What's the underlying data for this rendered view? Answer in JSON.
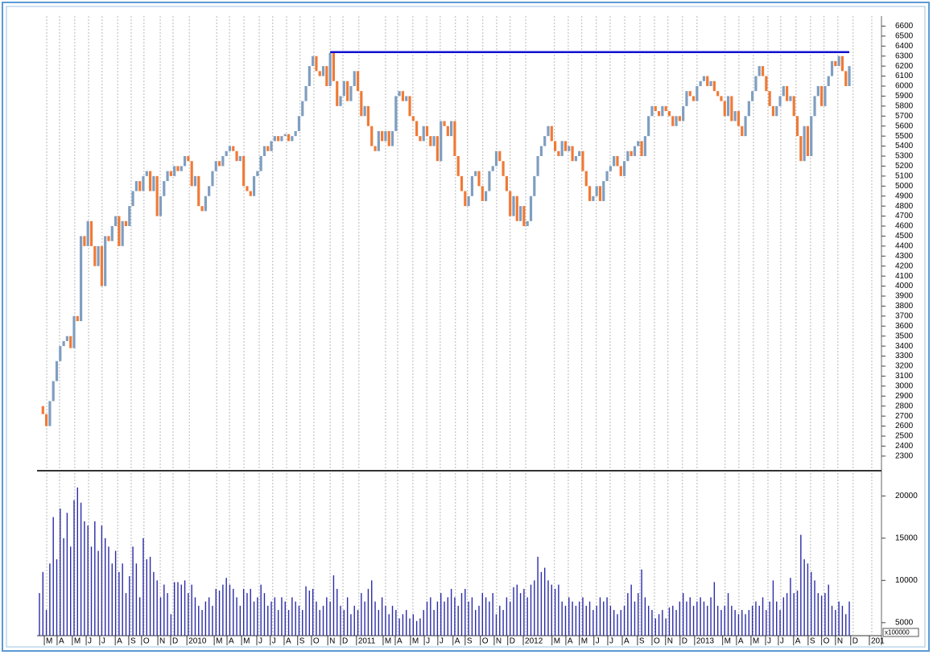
{
  "chart_data": [
    {
      "type": "candlestick",
      "up_color": "#7f9ec0",
      "down_color": "#f07a36",
      "xlim": [
        -0.7,
        243.3
      ],
      "ylim": [
        2170,
        6700
      ],
      "yticks": [
        2300,
        2400,
        2500,
        2600,
        2700,
        2800,
        2900,
        3000,
        3100,
        3200,
        3300,
        3400,
        3500,
        3600,
        3700,
        3800,
        3900,
        4000,
        4100,
        4200,
        4300,
        4400,
        4500,
        4600,
        4700,
        4800,
        4900,
        5000,
        5100,
        5200,
        5300,
        5400,
        5500,
        5600,
        5700,
        5800,
        5900,
        6000,
        6100,
        6200,
        6300,
        6400,
        6500,
        6600
      ],
      "hline": {
        "value": 6340,
        "from": 84,
        "to": 234,
        "color": "#1010d0"
      },
      "values": [
        2800,
        2720,
        2600,
        2850,
        3050,
        3250,
        3400,
        3450,
        3500,
        3380,
        3700,
        3650,
        4500,
        4400,
        4650,
        4400,
        4200,
        4400,
        4000,
        4500,
        4450,
        4600,
        4700,
        4400,
        4650,
        4600,
        4800,
        4950,
        5050,
        4950,
        5100,
        5150,
        4950,
        5100,
        4700,
        4900,
        5050,
        5150,
        5100,
        5200,
        5150,
        5200,
        5300,
        5250,
        5000,
        5100,
        4800,
        4750,
        4900,
        5000,
        5150,
        5250,
        5200,
        5300,
        5350,
        5400,
        5350,
        5250,
        5300,
        5000,
        4950,
        4900,
        5100,
        5150,
        5300,
        5400,
        5350,
        5450,
        5500,
        5450,
        5500,
        5520,
        5450,
        5500,
        5550,
        5700,
        5850,
        6000,
        6200,
        6300,
        6150,
        6100,
        6200,
        6000,
        6330,
        6050,
        5800,
        5900,
        6050,
        5850,
        6000,
        6150,
        5950,
        5700,
        5800,
        5600,
        5400,
        5350,
        5550,
        5450,
        5550,
        5400,
        5550,
        5900,
        5950,
        5850,
        5900,
        5700,
        5650,
        5500,
        5450,
        5600,
        5500,
        5400,
        5500,
        5250,
        5650,
        5600,
        5500,
        5650,
        5300,
        5100,
        4950,
        4800,
        4900,
        5100,
        5150,
        5000,
        4850,
        4950,
        5150,
        5200,
        5350,
        5250,
        5100,
        4950,
        4700,
        4900,
        4650,
        4800,
        4600,
        4650,
        4900,
        5100,
        5300,
        5400,
        5500,
        5600,
        5450,
        5350,
        5300,
        5450,
        5350,
        5400,
        5250,
        5300,
        5350,
        5150,
        5000,
        4850,
        4900,
        5000,
        4850,
        5050,
        5150,
        5200,
        5300,
        5200,
        5100,
        5250,
        5350,
        5300,
        5400,
        5450,
        5300,
        5500,
        5700,
        5800,
        5750,
        5700,
        5800,
        5750,
        5700,
        5600,
        5700,
        5650,
        5800,
        5950,
        5900,
        5850,
        6000,
        6050,
        6100,
        6000,
        6050,
        5950,
        5900,
        5850,
        5700,
        5900,
        5650,
        5750,
        5600,
        5500,
        5700,
        5850,
        5950,
        6100,
        6200,
        6100,
        5950,
        5800,
        5700,
        5800,
        5900,
        6000,
        5850,
        5900,
        5700,
        5500,
        5250,
        5600,
        5300,
        5700,
        5900,
        6000,
        5800,
        6000,
        6100,
        6250,
        6200,
        6300,
        6150,
        6000,
        6200
      ]
    },
    {
      "type": "bar",
      "color": "#2b2ba8",
      "xlim": [
        -0.7,
        243.3
      ],
      "ylim": [
        3460,
        22700
      ],
      "yticks": [
        5000,
        10000,
        15000,
        20000
      ],
      "unit_label": "x100000",
      "xticks": [
        {
          "value": 2.1,
          "label": "M"
        },
        {
          "value": 5.8,
          "label": "A"
        },
        {
          "value": 10.2,
          "label": "M"
        },
        {
          "value": 14.2,
          "label": "J"
        },
        {
          "value": 18.1,
          "label": "J"
        },
        {
          "value": 22.6,
          "label": "A"
        },
        {
          "value": 26.5,
          "label": "S"
        },
        {
          "value": 30.2,
          "label": "O"
        },
        {
          "value": 34.9,
          "label": "N"
        },
        {
          "value": 38.6,
          "label": "D"
        },
        {
          "value": 43.3,
          "label": "2010"
        },
        {
          "value": 51.2,
          "label": "M"
        },
        {
          "value": 54.9,
          "label": "A"
        },
        {
          "value": 59.1,
          "label": "M"
        },
        {
          "value": 63.5,
          "label": "J"
        },
        {
          "value": 67.4,
          "label": "J"
        },
        {
          "value": 71.4,
          "label": "A"
        },
        {
          "value": 75.3,
          "label": "S"
        },
        {
          "value": 79.3,
          "label": "O"
        },
        {
          "value": 84,
          "label": "N"
        },
        {
          "value": 87.7,
          "label": "D"
        },
        {
          "value": 92.3,
          "label": "2011"
        },
        {
          "value": 100,
          "label": "M"
        },
        {
          "value": 103.5,
          "label": "A"
        },
        {
          "value": 107.9,
          "label": "M"
        },
        {
          "value": 111.9,
          "label": "J"
        },
        {
          "value": 115.8,
          "label": "J"
        },
        {
          "value": 120.2,
          "label": "A"
        },
        {
          "value": 123.7,
          "label": "S"
        },
        {
          "value": 128.1,
          "label": "O"
        },
        {
          "value": 132.1,
          "label": "N"
        },
        {
          "value": 136,
          "label": "D"
        },
        {
          "value": 140.5,
          "label": "2012"
        },
        {
          "value": 148.8,
          "label": "M"
        },
        {
          "value": 152.8,
          "label": "A"
        },
        {
          "value": 156.7,
          "label": "M"
        },
        {
          "value": 160.9,
          "label": "J"
        },
        {
          "value": 164.9,
          "label": "J"
        },
        {
          "value": 169.1,
          "label": "A"
        },
        {
          "value": 173.5,
          "label": "S"
        },
        {
          "value": 177.7,
          "label": "O"
        },
        {
          "value": 181.6,
          "label": "N"
        },
        {
          "value": 185.8,
          "label": "D"
        },
        {
          "value": 190,
          "label": "2013"
        },
        {
          "value": 198.1,
          "label": "M"
        },
        {
          "value": 202.1,
          "label": "A"
        },
        {
          "value": 206.3,
          "label": "M"
        },
        {
          "value": 210.5,
          "label": "J"
        },
        {
          "value": 214.2,
          "label": "J"
        },
        {
          "value": 218.6,
          "label": "A"
        },
        {
          "value": 222.8,
          "label": "S"
        },
        {
          "value": 226.7,
          "label": "O"
        },
        {
          "value": 230.7,
          "label": "N"
        },
        {
          "value": 235.1,
          "label": "D"
        },
        {
          "value": 240.5,
          "label": "201"
        }
      ],
      "values": [
        8500,
        11000,
        6500,
        12000,
        17500,
        12500,
        18500,
        15000,
        18000,
        14000,
        19500,
        21000,
        19200,
        17000,
        16500,
        14000,
        17000,
        13500,
        16500,
        15000,
        14000,
        12000,
        13500,
        11000,
        12000,
        8500,
        10500,
        14000,
        12000,
        8000,
        15000,
        12500,
        12800,
        11000,
        10000,
        8000,
        9500,
        8500,
        6000,
        9800,
        9800,
        9500,
        10000,
        8500,
        9500,
        8000,
        7000,
        6500,
        7500,
        8000,
        7000,
        9000,
        8800,
        9500,
        10300,
        9500,
        9000,
        8000,
        7000,
        9000,
        8500,
        9000,
        7500,
        8000,
        9500,
        8500,
        7000,
        7500,
        8000,
        6500,
        8000,
        7500,
        6500,
        8000,
        7500,
        7000,
        6500,
        9300,
        8800,
        9000,
        7500,
        6500,
        7000,
        8000,
        7500,
        10600,
        9000,
        7000,
        6500,
        8000,
        6000,
        7000,
        6500,
        8500,
        7500,
        9000,
        10000,
        7500,
        6500,
        8000,
        7000,
        6000,
        7000,
        6500,
        5500,
        6000,
        6500,
        5500,
        6000,
        5200,
        5500,
        6500,
        7500,
        8000,
        6500,
        7500,
        8500,
        7500,
        8000,
        9000,
        8000,
        7000,
        8500,
        9000,
        7500,
        8000,
        6500,
        7000,
        8500,
        8000,
        7500,
        8500,
        6000,
        7000,
        6500,
        8000,
        7500,
        9200,
        9500,
        8500,
        9000,
        8000,
        9500,
        10000,
        12800,
        11000,
        11500,
        10000,
        9500,
        9000,
        9500,
        7500,
        7000,
        8000,
        7500,
        7000,
        7500,
        8000,
        7000,
        7500,
        6500,
        7000,
        8000,
        7500,
        8000,
        7000,
        6500,
        6000,
        6500,
        7000,
        8500,
        9500,
        7500,
        8500,
        11300,
        8000,
        7000,
        6500,
        5500,
        6000,
        6500,
        5500,
        6800,
        7000,
        6500,
        7500,
        8500,
        7500,
        8000,
        7000,
        7500,
        8000,
        7500,
        7000,
        8000,
        9800,
        7000,
        6500,
        7000,
        8500,
        7000,
        6500,
        6000,
        6500,
        6000,
        6500,
        7000,
        7500,
        7000,
        8000,
        6500,
        7500,
        10000,
        7500,
        6500,
        8000,
        8500,
        10300,
        8500,
        8800,
        15400,
        12500,
        12000,
        11000,
        10000,
        8500,
        8200,
        8500,
        9500,
        7000,
        6500,
        7500,
        7000,
        6000,
        7500
      ]
    }
  ]
}
